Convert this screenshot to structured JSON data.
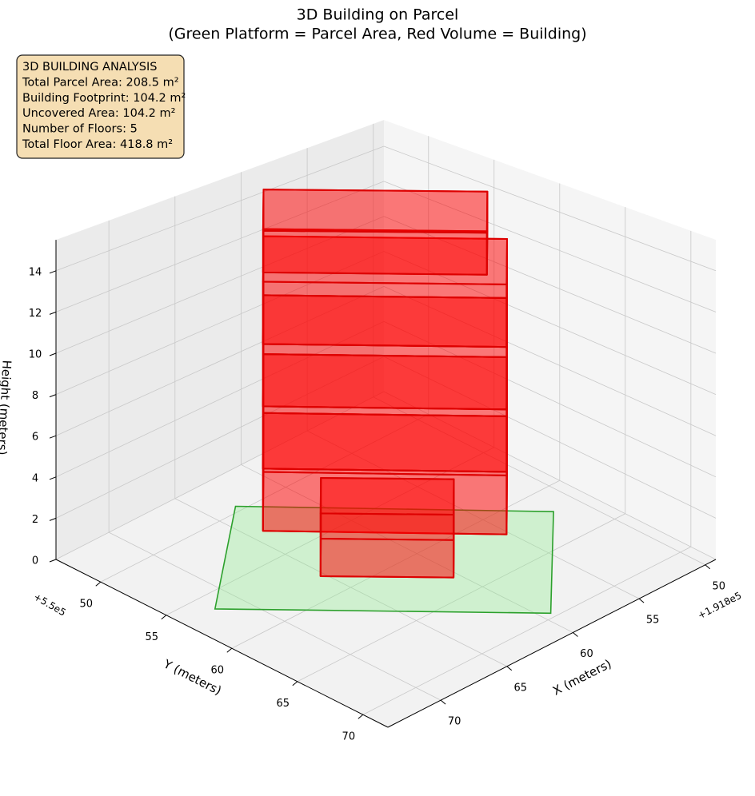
{
  "chart_data": {
    "type": "building3d",
    "title": "3D Building on Parcel",
    "subtitle": "(Green Platform = Parcel Area, Red Volume = Building)",
    "xlabel": "X (meters)",
    "ylabel": "Y (meters)",
    "zlabel": "Height (meters)",
    "x_offset": "+1.918e5",
    "y_offset": "+5.5e5",
    "xlim": [
      49.2,
      74.0
    ],
    "ylim": [
      46.6,
      71.9
    ],
    "zlim": [
      0,
      15.5
    ],
    "xticks": [
      50,
      55,
      60,
      65,
      70
    ],
    "yticks": [
      50,
      55,
      60,
      65,
      70
    ],
    "zticks": [
      0,
      2,
      4,
      6,
      8,
      10,
      12,
      14
    ],
    "grid": true,
    "annotation": [
      "3D BUILDING ANALYSIS",
      "Total Parcel Area: 208.5 m²",
      "Building Footprint: 104.2 m²",
      "Uncovered Area: 104.2 m²",
      "Number of Floors: 5",
      "Total Floor Area: 418.8 m²"
    ],
    "parcel": {
      "color": "#90ee90",
      "edgecolor": "#2ca02c",
      "corners": [
        [
          63.3,
          49.5
        ],
        [
          51.75,
          62.1
        ],
        [
          59.4,
          69.6
        ],
        [
          71.7,
          56.4
        ]
      ]
    },
    "building_color": "#ff0000",
    "building_edgecolor": "#dd0000",
    "boxes": [
      {
        "footprint": [
          [
            64.1,
            52.4
          ],
          [
            55.2,
            62.0
          ],
          [
            50.8,
            57.6
          ],
          [
            59.7,
            48.0
          ]
        ],
        "z": [
          0,
          3.1
        ]
      },
      {
        "footprint": [
          [
            64.1,
            52.4
          ],
          [
            55.2,
            62.0
          ],
          [
            50.8,
            57.6
          ],
          [
            59.7,
            48.0
          ]
        ],
        "z": [
          3.1,
          6.2
        ]
      },
      {
        "footprint": [
          [
            64.1,
            52.4
          ],
          [
            55.2,
            62.0
          ],
          [
            50.8,
            57.6
          ],
          [
            59.7,
            48.0
          ]
        ],
        "z": [
          6.2,
          9.3
        ]
      },
      {
        "footprint": [
          [
            64.1,
            52.4
          ],
          [
            55.2,
            62.0
          ],
          [
            50.8,
            57.6
          ],
          [
            59.7,
            48.0
          ]
        ],
        "z": [
          9.3,
          12.4
        ]
      },
      {
        "footprint": [
          [
            63.2,
            51.5
          ],
          [
            55.0,
            60.3
          ],
          [
            50.8,
            56.1
          ],
          [
            59.0,
            47.3
          ]
        ],
        "z": [
          12.4,
          14.5
        ]
      },
      {
        "footprint": [
          [
            65.3,
            58.0
          ],
          [
            60.4,
            63.2
          ],
          [
            57.6,
            60.4
          ],
          [
            62.5,
            55.2
          ]
        ],
        "z": [
          0,
          3.0
        ]
      }
    ]
  }
}
